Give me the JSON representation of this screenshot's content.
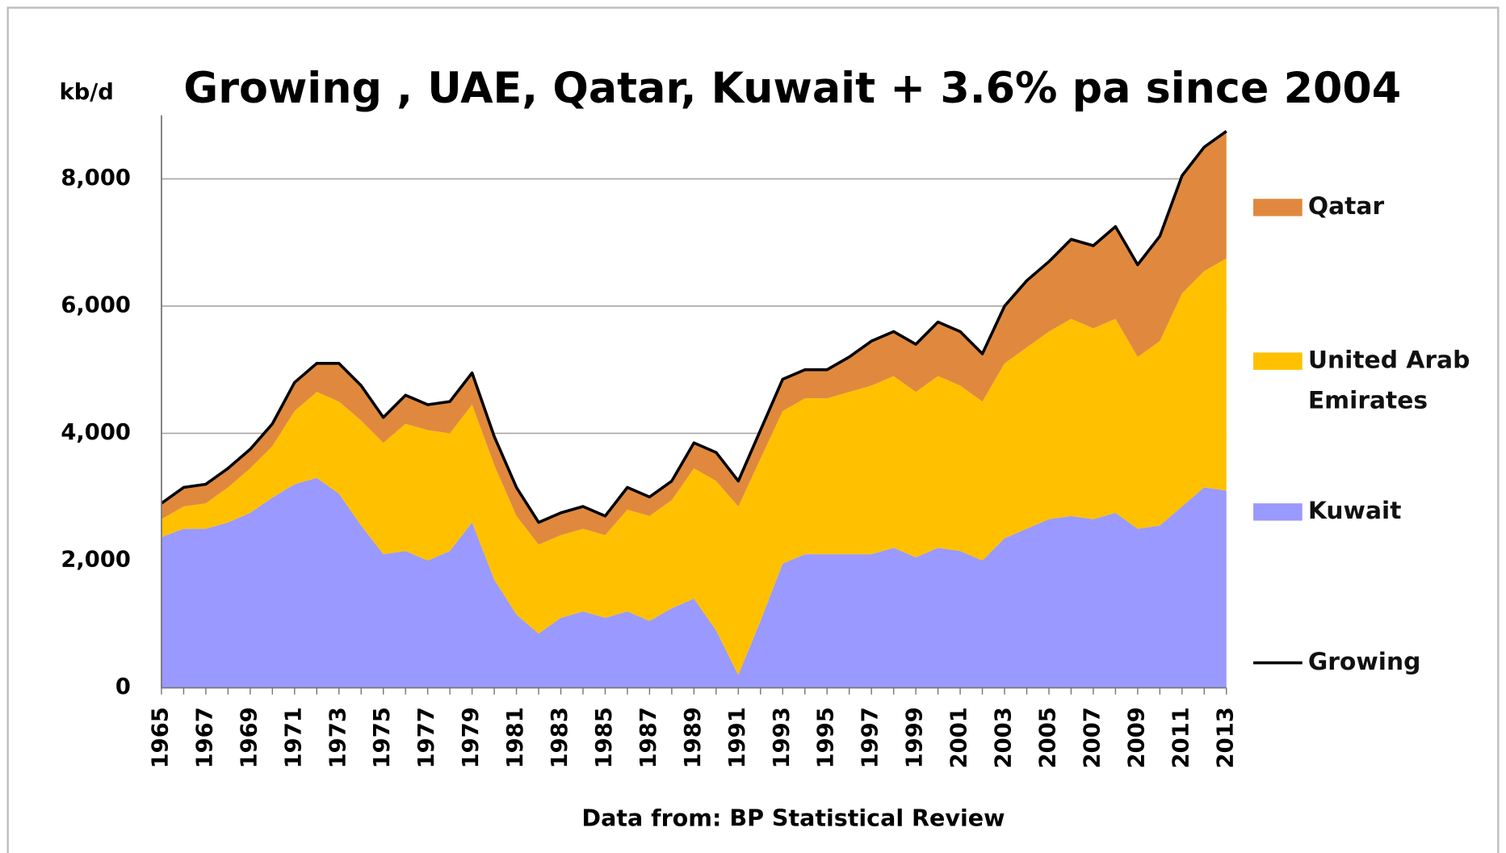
{
  "chart_data": {
    "type": "stacked_area",
    "title": "Growing , UAE, Qatar, Kuwait + 3.6% pa since 2004",
    "y_label": "kb/d",
    "source": "Data from: BP Statistical Review",
    "categories": [
      "1965",
      null,
      "1967",
      null,
      "1969",
      null,
      "1971",
      null,
      "1973",
      null,
      "1975",
      null,
      "1977",
      null,
      "1979",
      null,
      "1981",
      null,
      "1983",
      null,
      "1985",
      null,
      "1987",
      null,
      "1989",
      null,
      "1991",
      null,
      "1993",
      null,
      "1995",
      null,
      "1997",
      null,
      "1999",
      null,
      "2001",
      null,
      "2003",
      null,
      "2005",
      null,
      "2007",
      null,
      "2009",
      null,
      "2011",
      null,
      "2013"
    ],
    "ylim": [
      0,
      9000
    ],
    "yticks": [
      0,
      {
        "value": 2000,
        "label": "2,000"
      },
      {
        "value": 4000,
        "label": "4,000"
      },
      {
        "value": 6000,
        "label": "6,000"
      },
      {
        "value": 8000,
        "label": "8,000"
      }
    ],
    "grid": true,
    "legend": "right",
    "series": [
      {
        "name": "Kuwait",
        "color": "#9999ff",
        "values": [
          2370,
          2500,
          2500,
          2600,
          2750,
          2990,
          3200,
          3300,
          3050,
          2550,
          2100,
          2150,
          2000,
          2150,
          2600,
          1700,
          1150,
          850,
          1100,
          1200,
          1100,
          1200,
          1050,
          1250,
          1400,
          900,
          200,
          1050,
          1950,
          2100,
          2100,
          2100,
          2100,
          2200,
          2050,
          2200,
          2150,
          2000,
          2350,
          2500,
          2650,
          2700,
          2650,
          2750,
          2500,
          2550,
          2850,
          3150,
          3100
        ]
      },
      {
        "name": "United Arab Emirates",
        "color": "#ffc000",
        "values": [
          280,
          350,
          400,
          550,
          700,
          810,
          1150,
          1350,
          1450,
          1650,
          1750,
          2000,
          2050,
          1850,
          1850,
          1800,
          1550,
          1400,
          1300,
          1300,
          1300,
          1600,
          1650,
          1700,
          2050,
          2350,
          2650,
          2550,
          2400,
          2450,
          2450,
          2550,
          2650,
          2700,
          2600,
          2700,
          2600,
          2500,
          2750,
          2850,
          2950,
          3100,
          3000,
          3050,
          2700,
          2900,
          3350,
          3400,
          3650
        ]
      },
      {
        "name": "Qatar",
        "color": "#e0893e",
        "values": [
          250,
          300,
          300,
          300,
          300,
          350,
          450,
          450,
          600,
          550,
          400,
          450,
          400,
          500,
          500,
          450,
          450,
          350,
          350,
          350,
          300,
          350,
          300,
          300,
          400,
          450,
          400,
          450,
          500,
          450,
          450,
          550,
          700,
          700,
          750,
          850,
          850,
          750,
          900,
          1050,
          1100,
          1250,
          1300,
          1450,
          1450,
          1650,
          1850,
          1950,
          2000
        ]
      },
      {
        "name": "Growing",
        "color": "#000000",
        "kind": "line",
        "values": [
          2900,
          3150,
          3200,
          3450,
          3750,
          4150,
          4800,
          5100,
          5100,
          4750,
          4250,
          4600,
          4450,
          4500,
          4950,
          3950,
          3150,
          2600,
          2750,
          2850,
          2700,
          3150,
          3000,
          3250,
          3850,
          3700,
          3250,
          4050,
          4850,
          5000,
          5000,
          5200,
          5450,
          5600,
          5400,
          5750,
          5600,
          5250,
          6000,
          6400,
          6700,
          7050,
          6950,
          7250,
          6650,
          7100,
          8050,
          8500,
          8750
        ]
      }
    ]
  }
}
